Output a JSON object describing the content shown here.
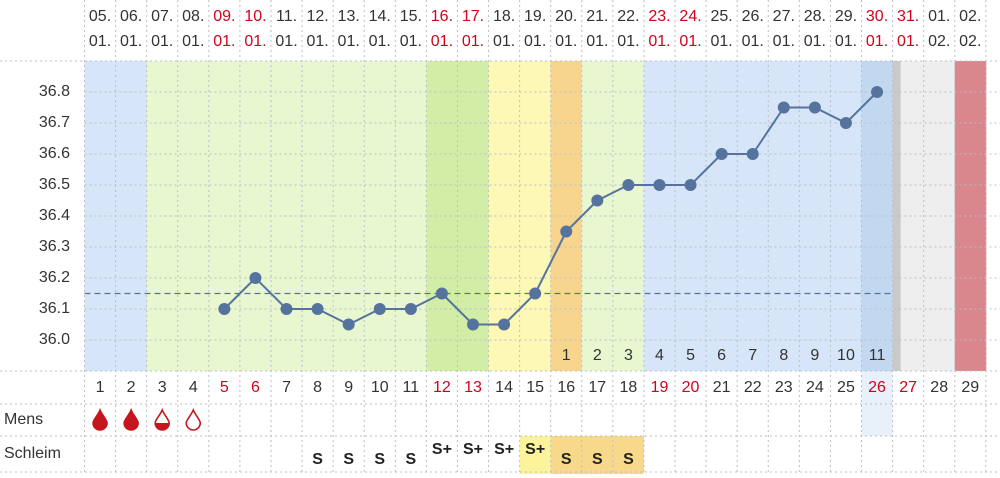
{
  "chart_data": {
    "type": "line",
    "row_labels": {
      "mens": "Mens",
      "mucus": "Schleim"
    },
    "categories": [
      1,
      2,
      3,
      4,
      5,
      6,
      7,
      8,
      9,
      10,
      11,
      12,
      13,
      14,
      15,
      16,
      17,
      18,
      19,
      20,
      21,
      22,
      23,
      24,
      25,
      26,
      27,
      28,
      29
    ],
    "date_days": [
      "05.",
      "06.",
      "07.",
      "08.",
      "09.",
      "10.",
      "11.",
      "12.",
      "13.",
      "14.",
      "15.",
      "16.",
      "17.",
      "18.",
      "19.",
      "20.",
      "21.",
      "22.",
      "23.",
      "24.",
      "25.",
      "26.",
      "27.",
      "28.",
      "29.",
      "30.",
      "31.",
      "01.",
      "02."
    ],
    "date_months": [
      "01.",
      "01.",
      "01.",
      "01.",
      "01.",
      "01.",
      "01.",
      "01.",
      "01.",
      "01.",
      "01.",
      "01.",
      "01.",
      "01.",
      "01.",
      "01.",
      "01.",
      "01.",
      "01.",
      "01.",
      "01.",
      "01.",
      "01.",
      "01.",
      "01.",
      "01.",
      "01.",
      "02.",
      "02."
    ],
    "values": [
      null,
      null,
      null,
      null,
      36.1,
      36.2,
      36.1,
      36.1,
      36.05,
      36.1,
      36.1,
      36.15,
      36.05,
      36.05,
      36.15,
      36.35,
      36.45,
      36.5,
      36.5,
      36.5,
      36.6,
      36.6,
      36.75,
      36.75,
      36.7,
      36.8,
      null,
      null,
      null
    ],
    "color": "#56739e",
    "coverline": 36.15,
    "high_day_counts": [
      null,
      null,
      null,
      null,
      null,
      null,
      null,
      null,
      null,
      null,
      null,
      null,
      null,
      null,
      null,
      1,
      2,
      3,
      4,
      5,
      6,
      7,
      8,
      9,
      10,
      11,
      null,
      null,
      null
    ],
    "mucus": [
      null,
      null,
      null,
      null,
      null,
      null,
      null,
      "S",
      "S",
      "S",
      "S",
      "S+",
      "S+",
      "S+",
      "S+",
      "S",
      "S",
      "S",
      null,
      null,
      null,
      null,
      null,
      null,
      null,
      null,
      null,
      null,
      null
    ],
    "ylim": [
      35.9,
      36.9
    ],
    "yticks": [
      {
        "value": 36,
        "label": "36.0"
      },
      36.1,
      36.2,
      36.3,
      36.4,
      36.5,
      36.6,
      36.7,
      36.8
    ],
    "grid": true
  }
}
